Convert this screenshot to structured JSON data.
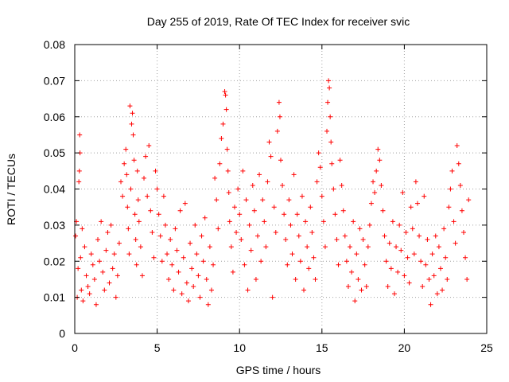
{
  "chart_data": {
    "type": "scatter",
    "title": "Day 255 of 2019, Rate Of TEC Index for receiver svic",
    "xlabel": "GPS time / hours",
    "ylabel": "ROTI / TECUs",
    "xlim": [
      0,
      25
    ],
    "ylim": [
      0,
      0.08
    ],
    "xticks": [
      0,
      5,
      10,
      15,
      20,
      25
    ],
    "yticks": [
      0,
      0.01,
      0.02,
      0.03,
      0.04,
      0.05,
      0.06,
      0.07,
      0.08
    ],
    "xtick_labels": [
      "0",
      "5",
      "10",
      "15",
      "20",
      "25"
    ],
    "ytick_labels": [
      "0",
      "0.01",
      "0.02",
      "0.03",
      "0.04",
      "0.05",
      "0.06",
      "0.07",
      "0.08"
    ],
    "grid": true,
    "marker": "+",
    "color": "#ff0000",
    "series": [
      {
        "name": "ROTI",
        "points": [
          [
            0.05,
            0.027
          ],
          [
            0.1,
            0.031
          ],
          [
            0.15,
            0.01
          ],
          [
            0.2,
            0.018
          ],
          [
            0.25,
            0.042
          ],
          [
            0.28,
            0.045
          ],
          [
            0.3,
            0.055
          ],
          [
            0.32,
            0.05
          ],
          [
            0.35,
            0.021
          ],
          [
            0.4,
            0.012
          ],
          [
            0.45,
            0.029
          ],
          [
            0.5,
            0.009
          ],
          [
            0.6,
            0.024
          ],
          [
            0.7,
            0.016
          ],
          [
            0.8,
            0.013
          ],
          [
            0.9,
            0.011
          ],
          [
            1.0,
            0.022
          ],
          [
            1.1,
            0.019
          ],
          [
            1.2,
            0.015
          ],
          [
            1.3,
            0.008
          ],
          [
            1.4,
            0.026
          ],
          [
            1.5,
            0.02
          ],
          [
            1.6,
            0.031
          ],
          [
            1.7,
            0.017
          ],
          [
            1.8,
            0.012
          ],
          [
            1.9,
            0.023
          ],
          [
            2.0,
            0.028
          ],
          [
            2.1,
            0.014
          ],
          [
            2.2,
            0.03
          ],
          [
            2.3,
            0.018
          ],
          [
            2.4,
            0.022
          ],
          [
            2.5,
            0.01
          ],
          [
            2.6,
            0.016
          ],
          [
            2.7,
            0.025
          ],
          [
            2.8,
            0.042
          ],
          [
            2.9,
            0.038
          ],
          [
            3.0,
            0.047
          ],
          [
            3.1,
            0.051
          ],
          [
            3.15,
            0.044
          ],
          [
            3.2,
            0.035
          ],
          [
            3.25,
            0.029
          ],
          [
            3.3,
            0.022
          ],
          [
            3.35,
            0.063
          ],
          [
            3.4,
            0.04
          ],
          [
            3.45,
            0.058
          ],
          [
            3.5,
            0.061
          ],
          [
            3.55,
            0.055
          ],
          [
            3.6,
            0.048
          ],
          [
            3.65,
            0.033
          ],
          [
            3.7,
            0.026
          ],
          [
            3.75,
            0.019
          ],
          [
            3.8,
            0.045
          ],
          [
            3.85,
            0.037
          ],
          [
            3.9,
            0.031
          ],
          [
            4.0,
            0.024
          ],
          [
            4.1,
            0.016
          ],
          [
            4.2,
            0.043
          ],
          [
            4.3,
            0.049
          ],
          [
            4.4,
            0.038
          ],
          [
            4.5,
            0.052
          ],
          [
            4.6,
            0.034
          ],
          [
            4.7,
            0.028
          ],
          [
            4.8,
            0.021
          ],
          [
            4.9,
            0.045
          ],
          [
            5.0,
            0.04
          ],
          [
            5.1,
            0.033
          ],
          [
            5.2,
            0.027
          ],
          [
            5.3,
            0.02
          ],
          [
            5.4,
            0.038
          ],
          [
            5.5,
            0.03
          ],
          [
            5.6,
            0.022
          ],
          [
            5.7,
            0.015
          ],
          [
            5.8,
            0.026
          ],
          [
            5.9,
            0.019
          ],
          [
            6.0,
            0.012
          ],
          [
            6.1,
            0.029
          ],
          [
            6.2,
            0.023
          ],
          [
            6.3,
            0.017
          ],
          [
            6.4,
            0.034
          ],
          [
            6.5,
            0.011
          ],
          [
            6.6,
            0.021
          ],
          [
            6.7,
            0.036
          ],
          [
            6.8,
            0.014
          ],
          [
            6.9,
            0.009
          ],
          [
            7.0,
            0.025
          ],
          [
            7.1,
            0.018
          ],
          [
            7.2,
            0.013
          ],
          [
            7.3,
            0.03
          ],
          [
            7.4,
            0.022
          ],
          [
            7.5,
            0.016
          ],
          [
            7.6,
            0.01
          ],
          [
            7.7,
            0.027
          ],
          [
            7.8,
            0.02
          ],
          [
            7.9,
            0.032
          ],
          [
            8.0,
            0.015
          ],
          [
            8.1,
            0.008
          ],
          [
            8.2,
            0.024
          ],
          [
            8.3,
            0.012
          ],
          [
            8.4,
            0.019
          ],
          [
            8.5,
            0.043
          ],
          [
            8.6,
            0.037
          ],
          [
            8.7,
            0.029
          ],
          [
            8.8,
            0.047
          ],
          [
            8.9,
            0.054
          ],
          [
            9.0,
            0.058
          ],
          [
            9.1,
            0.067
          ],
          [
            9.15,
            0.066
          ],
          [
            9.2,
            0.062
          ],
          [
            9.25,
            0.051
          ],
          [
            9.3,
            0.045
          ],
          [
            9.35,
            0.039
          ],
          [
            9.4,
            0.031
          ],
          [
            9.5,
            0.024
          ],
          [
            9.6,
            0.017
          ],
          [
            9.7,
            0.035
          ],
          [
            9.8,
            0.028
          ],
          [
            9.9,
            0.04
          ],
          [
            10.0,
            0.033
          ],
          [
            10.1,
            0.026
          ],
          [
            10.2,
            0.045
          ],
          [
            10.3,
            0.019
          ],
          [
            10.4,
            0.037
          ],
          [
            10.5,
            0.012
          ],
          [
            10.6,
            0.03
          ],
          [
            10.7,
            0.023
          ],
          [
            10.8,
            0.041
          ],
          [
            10.9,
            0.034
          ],
          [
            11.0,
            0.015
          ],
          [
            11.1,
            0.027
          ],
          [
            11.2,
            0.044
          ],
          [
            11.3,
            0.02
          ],
          [
            11.4,
            0.037
          ],
          [
            11.5,
            0.031
          ],
          [
            11.6,
            0.024
          ],
          [
            11.7,
            0.042
          ],
          [
            11.8,
            0.053
          ],
          [
            11.9,
            0.049
          ],
          [
            12.0,
            0.01
          ],
          [
            12.1,
            0.035
          ],
          [
            12.2,
            0.028
          ],
          [
            12.3,
            0.056
          ],
          [
            12.4,
            0.064
          ],
          [
            12.45,
            0.06
          ],
          [
            12.5,
            0.048
          ],
          [
            12.6,
            0.041
          ],
          [
            12.7,
            0.033
          ],
          [
            12.8,
            0.026
          ],
          [
            12.9,
            0.019
          ],
          [
            13.0,
            0.037
          ],
          [
            13.1,
            0.03
          ],
          [
            13.2,
            0.022
          ],
          [
            13.3,
            0.044
          ],
          [
            13.4,
            0.015
          ],
          [
            13.5,
            0.033
          ],
          [
            13.6,
            0.027
          ],
          [
            13.7,
            0.02
          ],
          [
            13.8,
            0.038
          ],
          [
            13.9,
            0.012
          ],
          [
            14.0,
            0.031
          ],
          [
            14.1,
            0.024
          ],
          [
            14.2,
            0.018
          ],
          [
            14.3,
            0.035
          ],
          [
            14.4,
            0.028
          ],
          [
            14.5,
            0.021
          ],
          [
            14.6,
            0.015
          ],
          [
            14.7,
            0.042
          ],
          [
            14.8,
            0.05
          ],
          [
            14.9,
            0.046
          ],
          [
            15.0,
            0.038
          ],
          [
            15.1,
            0.031
          ],
          [
            15.2,
            0.024
          ],
          [
            15.3,
            0.056
          ],
          [
            15.35,
            0.064
          ],
          [
            15.4,
            0.07
          ],
          [
            15.45,
            0.068
          ],
          [
            15.5,
            0.06
          ],
          [
            15.55,
            0.053
          ],
          [
            15.6,
            0.047
          ],
          [
            15.7,
            0.04
          ],
          [
            15.8,
            0.033
          ],
          [
            15.9,
            0.026
          ],
          [
            16.0,
            0.019
          ],
          [
            16.1,
            0.048
          ],
          [
            16.2,
            0.041
          ],
          [
            16.3,
            0.034
          ],
          [
            16.4,
            0.027
          ],
          [
            16.5,
            0.02
          ],
          [
            16.6,
            0.013
          ],
          [
            16.7,
            0.024
          ],
          [
            16.8,
            0.017
          ],
          [
            16.9,
            0.031
          ],
          [
            17.0,
            0.009
          ],
          [
            17.1,
            0.022
          ],
          [
            17.2,
            0.015
          ],
          [
            17.3,
            0.029
          ],
          [
            17.4,
            0.012
          ],
          [
            17.5,
            0.026
          ],
          [
            17.6,
            0.019
          ],
          [
            17.7,
            0.013
          ],
          [
            17.8,
            0.024
          ],
          [
            17.9,
            0.03
          ],
          [
            18.0,
            0.036
          ],
          [
            18.1,
            0.042
          ],
          [
            18.2,
            0.039
          ],
          [
            18.3,
            0.045
          ],
          [
            18.4,
            0.051
          ],
          [
            18.5,
            0.048
          ],
          [
            18.6,
            0.041
          ],
          [
            18.7,
            0.034
          ],
          [
            18.8,
            0.027
          ],
          [
            18.9,
            0.02
          ],
          [
            19.0,
            0.013
          ],
          [
            19.1,
            0.025
          ],
          [
            19.2,
            0.018
          ],
          [
            19.3,
            0.031
          ],
          [
            19.4,
            0.011
          ],
          [
            19.5,
            0.024
          ],
          [
            19.6,
            0.017
          ],
          [
            19.7,
            0.03
          ],
          [
            19.8,
            0.023
          ],
          [
            19.9,
            0.039
          ],
          [
            20.0,
            0.016
          ],
          [
            20.1,
            0.028
          ],
          [
            20.2,
            0.021
          ],
          [
            20.3,
            0.014
          ],
          [
            20.4,
            0.035
          ],
          [
            20.5,
            0.029
          ],
          [
            20.6,
            0.022
          ],
          [
            20.7,
            0.042
          ],
          [
            20.8,
            0.036
          ],
          [
            20.9,
            0.027
          ],
          [
            21.0,
            0.02
          ],
          [
            21.1,
            0.013
          ],
          [
            21.2,
            0.038
          ],
          [
            21.3,
            0.019
          ],
          [
            21.4,
            0.026
          ],
          [
            21.5,
            0.015
          ],
          [
            21.6,
            0.008
          ],
          [
            21.7,
            0.022
          ],
          [
            21.8,
            0.016
          ],
          [
            21.9,
            0.027
          ],
          [
            22.0,
            0.011
          ],
          [
            22.1,
            0.024
          ],
          [
            22.2,
            0.018
          ],
          [
            22.3,
            0.012
          ],
          [
            22.4,
            0.029
          ],
          [
            22.5,
            0.021
          ],
          [
            22.6,
            0.015
          ],
          [
            22.7,
            0.035
          ],
          [
            22.8,
            0.04
          ],
          [
            22.9,
            0.045
          ],
          [
            23.0,
            0.031
          ],
          [
            23.1,
            0.025
          ],
          [
            23.2,
            0.052
          ],
          [
            23.3,
            0.047
          ],
          [
            23.4,
            0.041
          ],
          [
            23.5,
            0.034
          ],
          [
            23.6,
            0.028
          ],
          [
            23.7,
            0.021
          ],
          [
            23.8,
            0.015
          ],
          [
            23.9,
            0.037
          ]
        ]
      }
    ]
  }
}
